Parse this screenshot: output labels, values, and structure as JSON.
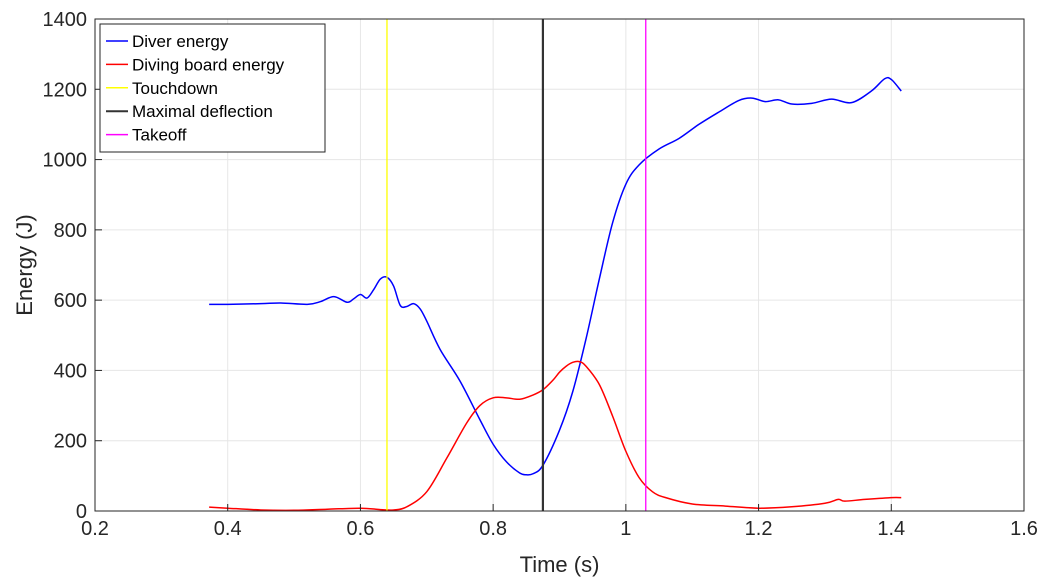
{
  "chart_data": {
    "type": "line",
    "xlabel": "Time (s)",
    "ylabel": "Energy (J)",
    "xlim": [
      0.2,
      1.6
    ],
    "ylim": [
      0,
      1400
    ],
    "xticks": [
      "0.2",
      "0.4",
      "0.6",
      "0.8",
      "1",
      "1.2",
      "1.4",
      "1.6"
    ],
    "yticks": [
      "0",
      "200",
      "400",
      "600",
      "800",
      "1000",
      "1200",
      "1400"
    ],
    "grid": true,
    "legend_position": "top-left",
    "series": [
      {
        "name": "Diver energy",
        "color": "#0000ff",
        "x": [
          0.372,
          0.4,
          0.45,
          0.48,
          0.52,
          0.54,
          0.56,
          0.58,
          0.59,
          0.6,
          0.61,
          0.62,
          0.63,
          0.64,
          0.65,
          0.66,
          0.67,
          0.68,
          0.69,
          0.7,
          0.72,
          0.75,
          0.78,
          0.8,
          0.82,
          0.84,
          0.85,
          0.86,
          0.875,
          0.9,
          0.92,
          0.94,
          0.96,
          0.98,
          1.0,
          1.02,
          1.05,
          1.08,
          1.11,
          1.14,
          1.17,
          1.19,
          1.21,
          1.23,
          1.25,
          1.28,
          1.31,
          1.34,
          1.37,
          1.39,
          1.4,
          1.415
        ],
        "y": [
          588,
          588,
          590,
          592,
          588,
          596,
          610,
          594,
          604,
          616,
          606,
          630,
          660,
          665,
          640,
          585,
          582,
          590,
          575,
          540,
          460,
          370,
          260,
          190,
          140,
          108,
          103,
          106,
          130,
          230,
          340,
          490,
          660,
          820,
          930,
          985,
          1030,
          1060,
          1100,
          1135,
          1168,
          1175,
          1165,
          1170,
          1158,
          1160,
          1172,
          1162,
          1195,
          1230,
          1228,
          1195
        ]
      },
      {
        "name": "Diving board energy",
        "color": "#ff0000",
        "x": [
          0.372,
          0.4,
          0.45,
          0.5,
          0.55,
          0.6,
          0.63,
          0.65,
          0.67,
          0.7,
          0.73,
          0.76,
          0.78,
          0.8,
          0.82,
          0.84,
          0.86,
          0.875,
          0.89,
          0.9,
          0.91,
          0.92,
          0.93,
          0.94,
          0.96,
          0.98,
          1.0,
          1.02,
          1.04,
          1.06,
          1.1,
          1.15,
          1.2,
          1.25,
          1.3,
          1.32,
          1.33,
          1.36,
          1.4,
          1.415
        ],
        "y": [
          11,
          8,
          3,
          2,
          5,
          8,
          4,
          3,
          12,
          55,
          150,
          250,
          300,
          322,
          322,
          318,
          330,
          345,
          372,
          395,
          412,
          423,
          425,
          412,
          360,
          270,
          170,
          95,
          55,
          38,
          20,
          14,
          8,
          12,
          22,
          33,
          28,
          33,
          38,
          38
        ]
      },
      {
        "name": "Touchdown",
        "color": "#ffff00",
        "vertical_x": 0.64
      },
      {
        "name": "Maximal deflection",
        "color": "#333333",
        "vertical_x": 0.875
      },
      {
        "name": "Takeoff",
        "color": "#ff00ff",
        "vertical_x": 1.03
      }
    ]
  }
}
